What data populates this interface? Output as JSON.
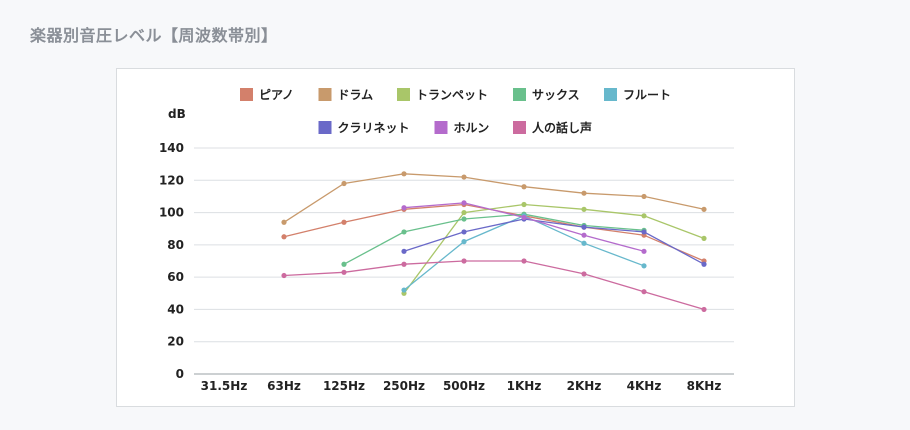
{
  "page": {
    "title": "楽器別音圧レベル【周波数帯別】"
  },
  "chart_data": {
    "type": "line",
    "title": "",
    "xlabel": "",
    "ylabel": "dB",
    "ylim": [
      0,
      140
    ],
    "yticks": [
      0,
      20,
      40,
      60,
      80,
      100,
      120,
      140
    ],
    "grid": true,
    "legend_position": "top",
    "categories": [
      "31.5Hz",
      "63Hz",
      "125Hz",
      "250Hz",
      "500Hz",
      "1KHz",
      "2KHz",
      "4KHz",
      "8KHz"
    ],
    "series": [
      {
        "name": "ピアノ",
        "color": "#d3806b",
        "values": [
          null,
          85,
          94,
          102,
          105,
          98,
          91,
          86,
          70
        ]
      },
      {
        "name": "ドラム",
        "color": "#c89a6c",
        "values": [
          null,
          94,
          118,
          124,
          122,
          116,
          112,
          110,
          102
        ]
      },
      {
        "name": "トランペット",
        "color": "#a9c669",
        "values": [
          null,
          null,
          null,
          50,
          100,
          105,
          102,
          98,
          84
        ]
      },
      {
        "name": "サックス",
        "color": "#69c08c",
        "values": [
          null,
          null,
          68,
          88,
          96,
          99,
          92,
          89,
          null
        ]
      },
      {
        "name": "フルート",
        "color": "#67b8cc",
        "values": [
          null,
          null,
          null,
          52,
          82,
          98,
          81,
          67,
          null
        ]
      },
      {
        "name": "クラリネット",
        "color": "#6a69c8",
        "values": [
          null,
          null,
          null,
          76,
          88,
          96,
          91,
          88,
          68
        ]
      },
      {
        "name": "ホルン",
        "color": "#b46bcc",
        "values": [
          null,
          null,
          null,
          103,
          106,
          97,
          86,
          76,
          null
        ]
      },
      {
        "name": "人の話し声",
        "color": "#cc6b9f",
        "values": [
          null,
          61,
          63,
          68,
          70,
          70,
          62,
          51,
          40
        ]
      }
    ]
  }
}
